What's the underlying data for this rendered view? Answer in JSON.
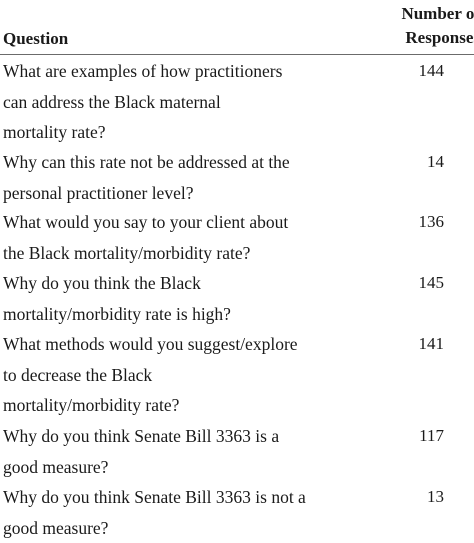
{
  "header": {
    "question_label": "Question",
    "count_label_line1": "Number of",
    "count_label_line2": "Responses"
  },
  "rows": [
    {
      "lines": [
        "What are examples of how practitioners",
        "can address the Black maternal",
        "mortality rate?"
      ],
      "count": "144"
    },
    {
      "lines": [
        "Why can this rate not be addressed at the",
        "personal practitioner level?"
      ],
      "count": "14"
    },
    {
      "lines": [
        "What would you say to your client about",
        "the Black mortality/morbidity rate?"
      ],
      "count": "136"
    },
    {
      "lines": [
        "Why do you think the Black",
        "mortality/morbidity rate is high?"
      ],
      "count": "145"
    },
    {
      "lines": [
        "What methods would you suggest/explore",
        "to decrease the Black",
        "mortality/morbidity rate?"
      ],
      "count": "141"
    },
    {
      "lines": [
        "Why do you think Senate Bill 3363 is a",
        "good measure?"
      ],
      "count": "117"
    },
    {
      "lines": [
        "Why do you think Senate Bill 3363 is not a",
        "good measure?"
      ],
      "count": "13"
    }
  ]
}
